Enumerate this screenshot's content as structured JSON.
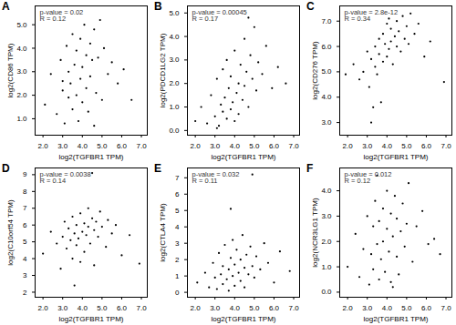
{
  "chart_data": [
    {
      "type": "scatter",
      "title": "A",
      "x_label": "log2(TGFBR1 TPM)",
      "y_label": "log2(CD86 TPM)",
      "annotations": [
        "p-value = 0.02",
        "R = 0.12"
      ],
      "color": "#000000",
      "xlim": [
        1.6,
        7.3
      ],
      "xticks": [
        2,
        3,
        4,
        5,
        6,
        7
      ],
      "ylim": [
        0.3,
        5.8
      ],
      "yticks": [
        1,
        2,
        3,
        4,
        5
      ],
      "x": [
        2.1,
        2.4,
        2.7,
        2.9,
        3.0,
        3.1,
        3.2,
        3.3,
        3.3,
        3.4,
        3.5,
        3.5,
        3.6,
        3.7,
        3.7,
        3.8,
        3.9,
        3.9,
        4.0,
        4.0,
        4.1,
        4.2,
        4.2,
        4.3,
        4.4,
        4.4,
        4.5,
        4.6,
        4.7,
        4.8,
        4.9,
        5.0,
        5.1,
        5.3,
        5.5,
        5.8,
        6.1,
        6.5,
        3.0,
        4.6
      ],
      "values": [
        1.6,
        2.9,
        1.2,
        3.5,
        2.2,
        0.8,
        4.1,
        1.9,
        3.0,
        2.5,
        4.6,
        1.4,
        3.3,
        2.0,
        3.9,
        0.9,
        2.7,
        4.4,
        1.7,
        3.2,
        5.0,
        2.3,
        3.7,
        1.3,
        4.2,
        2.8,
        3.5,
        4.8,
        2.1,
        3.6,
        5.2,
        1.8,
        4.0,
        2.9,
        3.4,
        2.5,
        3.1,
        1.8,
        2.6,
        0.7
      ]
    },
    {
      "type": "scatter",
      "title": "B",
      "x_label": "log2(TGFBR1 TPM)",
      "y_label": "log2(PDCD1LG2 TPM)",
      "annotations": [
        "p-value = 0.00045",
        "R = 0.17"
      ],
      "color": "#000000",
      "xlim": [
        1.6,
        7.3
      ],
      "xticks": [
        2,
        3,
        4,
        5,
        6,
        7
      ],
      "ylim": [
        -0.2,
        5.3
      ],
      "yticks": [
        0,
        1,
        2,
        3,
        4,
        5
      ],
      "x": [
        2.0,
        2.3,
        2.6,
        2.8,
        3.0,
        3.1,
        3.2,
        3.3,
        3.4,
        3.4,
        3.5,
        3.6,
        3.6,
        3.7,
        3.8,
        3.8,
        3.9,
        4.0,
        4.0,
        4.1,
        4.2,
        4.2,
        4.3,
        4.4,
        4.5,
        4.5,
        4.6,
        4.7,
        4.8,
        4.9,
        5.0,
        5.1,
        5.2,
        5.4,
        5.6,
        5.9,
        6.2,
        6.6,
        3.1,
        4.7
      ],
      "values": [
        0.4,
        1.0,
        0.3,
        1.5,
        0.6,
        2.2,
        0.2,
        1.1,
        0.8,
        2.6,
        1.4,
        0.5,
        3.0,
        1.8,
        0.9,
        2.3,
        1.2,
        0.4,
        3.4,
        1.6,
        2.0,
        0.7,
        2.8,
        1.3,
        3.9,
        1.9,
        2.5,
        1.0,
        3.2,
        2.2,
        4.4,
        1.7,
        2.9,
        2.4,
        3.6,
        1.8,
        2.7,
        2.0,
        0.1,
        4.8
      ]
    },
    {
      "type": "scatter",
      "title": "C",
      "x_label": "log2(TGFBR1 TPM)",
      "y_label": "log2(CD276 TPM)",
      "annotations": [
        "p-value = 2.8e-12",
        "R = 0.34"
      ],
      "color": "#000000",
      "xlim": [
        1.6,
        7.3
      ],
      "xticks": [
        2,
        3,
        4,
        5,
        6,
        7
      ],
      "ylim": [
        2.5,
        7.6
      ],
      "yticks": [
        3,
        4,
        5,
        6,
        7
      ],
      "x": [
        1.9,
        2.3,
        2.6,
        2.8,
        3.0,
        3.1,
        3.2,
        3.3,
        3.4,
        3.4,
        3.5,
        3.6,
        3.6,
        3.7,
        3.8,
        3.8,
        3.9,
        4.0,
        4.0,
        4.1,
        4.2,
        4.2,
        4.3,
        4.4,
        4.5,
        4.5,
        4.6,
        4.7,
        4.8,
        4.9,
        5.0,
        5.1,
        5.2,
        5.4,
        5.6,
        5.9,
        6.2,
        6.9,
        3.2,
        4.1
      ],
      "values": [
        4.9,
        5.3,
        4.7,
        5.0,
        5.8,
        4.4,
        5.5,
        3.6,
        6.0,
        5.2,
        4.9,
        6.3,
        5.7,
        3.8,
        5.4,
        6.5,
        6.1,
        5.6,
        6.9,
        5.9,
        6.2,
        6.7,
        5.3,
        6.4,
        7.0,
        6.0,
        6.6,
        5.8,
        7.2,
        6.3,
        6.8,
        6.1,
        7.3,
        6.5,
        6.9,
        5.6,
        6.2,
        4.6,
        3.0,
        7.1
      ]
    },
    {
      "type": "scatter",
      "title": "D",
      "x_label": "log2(TGFBR1 TPM)",
      "y_label": "log2(C10orf54 TPM)",
      "annotations": [
        "p-value = 0.0038",
        "R = 0.14"
      ],
      "color": "#000000",
      "xlim": [
        1.6,
        7.3
      ],
      "xticks": [
        2,
        3,
        4,
        5,
        6,
        7
      ],
      "ylim": [
        1.7,
        9.4
      ],
      "yticks": [
        2,
        3,
        4,
        5,
        6,
        7,
        8,
        9
      ],
      "x": [
        2.0,
        2.4,
        2.7,
        2.9,
        3.0,
        3.1,
        3.2,
        3.3,
        3.4,
        3.5,
        3.5,
        3.6,
        3.7,
        3.7,
        3.8,
        3.9,
        3.9,
        4.0,
        4.1,
        4.1,
        4.2,
        4.3,
        4.3,
        4.4,
        4.5,
        4.6,
        4.6,
        4.7,
        4.8,
        4.9,
        5.0,
        5.2,
        5.3,
        5.5,
        5.7,
        6.0,
        6.4,
        6.9,
        3.6,
        4.5
      ],
      "values": [
        4.3,
        5.6,
        4.9,
        3.4,
        5.3,
        6.2,
        4.6,
        5.8,
        5.1,
        4.0,
        6.5,
        5.5,
        4.8,
        6.0,
        5.2,
        3.8,
        6.7,
        5.6,
        4.4,
        6.1,
        5.4,
        7.0,
        5.9,
        4.9,
        6.4,
        5.7,
        3.6,
        6.2,
        5.3,
        6.8,
        5.9,
        4.7,
        6.3,
        5.5,
        6.0,
        4.2,
        5.4,
        3.7,
        2.4,
        9.1
      ]
    },
    {
      "type": "scatter",
      "title": "E",
      "x_label": "log2(TGFBR1 TPM)",
      "y_label": "log2(CTLA4 TPM)",
      "annotations": [
        "p-value = 0.032",
        "R = 0.11"
      ],
      "color": "#000000",
      "xlim": [
        1.6,
        7.3
      ],
      "xticks": [
        2,
        3,
        4,
        5,
        6,
        7
      ],
      "ylim": [
        -0.3,
        7.6
      ],
      "yticks": [
        0,
        1,
        2,
        3,
        4,
        5,
        6,
        7
      ],
      "x": [
        2.1,
        2.5,
        2.7,
        2.9,
        3.0,
        3.1,
        3.2,
        3.3,
        3.4,
        3.4,
        3.5,
        3.6,
        3.7,
        3.7,
        3.8,
        3.9,
        3.9,
        4.0,
        4.0,
        4.1,
        4.2,
        4.3,
        4.3,
        4.4,
        4.5,
        4.5,
        4.6,
        4.7,
        4.8,
        4.9,
        5.0,
        5.1,
        5.3,
        5.5,
        5.7,
        6.0,
        6.3,
        6.8,
        3.8,
        4.9
      ],
      "values": [
        0.6,
        1.2,
        0.3,
        1.8,
        0.9,
        0.2,
        2.4,
        1.1,
        0.5,
        1.6,
        2.9,
        0.8,
        1.4,
        0.1,
        2.1,
        1.0,
        3.2,
        0.4,
        1.7,
        2.6,
        1.2,
        0.7,
        2.0,
        3.5,
        1.5,
        0.3,
        2.3,
        1.1,
        2.8,
        1.6,
        0.9,
        2.2,
        1.4,
        3.0,
        1.8,
        0.6,
        2.5,
        1.3,
        5.1,
        7.2
      ]
    },
    {
      "type": "scatter",
      "title": "F",
      "x_label": "log2(TGFBR1 TPM)",
      "y_label": "log2(NCR3LG1 TPM)",
      "annotations": [
        "p-value = 0.012",
        "R = 0.12"
      ],
      "color": "#000000",
      "xlim": [
        1.6,
        7.3
      ],
      "xticks": [
        2,
        3,
        4,
        5,
        6,
        7
      ],
      "ylim": [
        -0.2,
        4.9
      ],
      "yticks": [
        0,
        1,
        2,
        3,
        4
      ],
      "x": [
        2.0,
        2.4,
        2.6,
        2.8,
        3.0,
        3.1,
        3.2,
        3.3,
        3.3,
        3.4,
        3.5,
        3.6,
        3.6,
        3.7,
        3.8,
        3.8,
        3.9,
        4.0,
        4.0,
        4.1,
        4.2,
        4.2,
        4.3,
        4.4,
        4.5,
        4.5,
        4.6,
        4.7,
        4.8,
        4.9,
        5.0,
        5.1,
        5.3,
        5.5,
        5.8,
        6.1,
        6.4,
        6.7,
        3.5,
        4.3
      ],
      "values": [
        1.0,
        2.3,
        0.6,
        1.7,
        3.0,
        0.3,
        1.5,
        2.6,
        0.9,
        3.6,
        1.9,
        0.5,
        2.8,
        1.3,
        3.3,
        2.0,
        0.8,
        2.5,
        4.0,
        1.6,
        3.1,
        0.4,
        2.2,
        3.8,
        1.4,
        2.9,
        0.7,
        2.4,
        3.5,
        1.8,
        2.7,
        4.3,
        1.2,
        2.6,
        3.2,
        1.9,
        2.1,
        1.5,
        4.6,
        0.2
      ]
    }
  ]
}
